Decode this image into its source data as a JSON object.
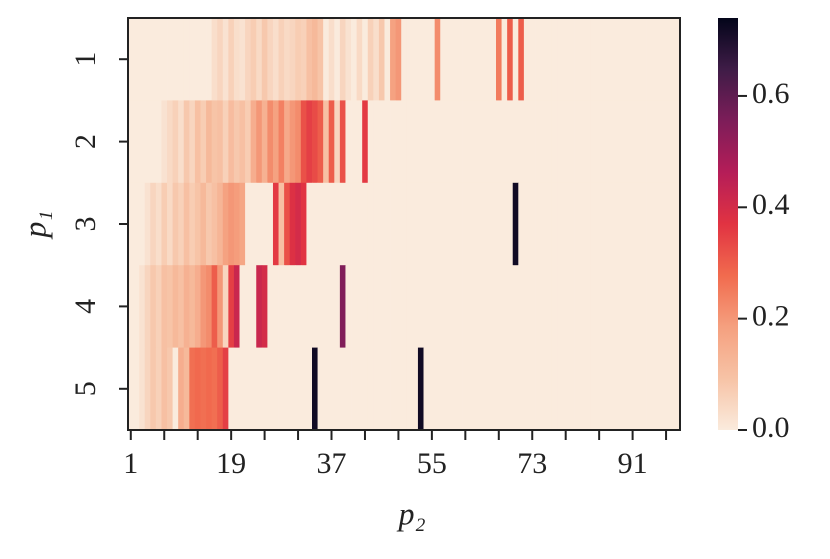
{
  "chart_data": {
    "type": "heatmap",
    "xlabel": "p₂",
    "ylabel": "p₁",
    "x": [
      1,
      2,
      3,
      4,
      5,
      6,
      7,
      8,
      9,
      10,
      11,
      12,
      13,
      14,
      15,
      16,
      17,
      18,
      19,
      20,
      21,
      22,
      23,
      24,
      25,
      26,
      27,
      28,
      29,
      30,
      31,
      32,
      33,
      34,
      35,
      36,
      37,
      38,
      39,
      40,
      41,
      42,
      43,
      44,
      45,
      46,
      47,
      48,
      49,
      50,
      51,
      52,
      53,
      54,
      55,
      56,
      57,
      58,
      59,
      60,
      61,
      62,
      63,
      64,
      65,
      66,
      67,
      68,
      69,
      70,
      71,
      72,
      73,
      74,
      75,
      76,
      77,
      78,
      79,
      80,
      81,
      82,
      83,
      84,
      85,
      86,
      87,
      88,
      89,
      90,
      91,
      92,
      93,
      94,
      95,
      96,
      97,
      98,
      99
    ],
    "xlim": [
      0.5,
      99.5
    ],
    "xticks": [
      1,
      19,
      37,
      55,
      73,
      91
    ],
    "xminorticks": [
      7,
      13,
      25,
      31,
      43,
      49,
      61,
      67,
      79,
      85,
      97
    ],
    "y": [
      "1",
      "2",
      "3",
      "4",
      "5"
    ],
    "z": [
      [
        0,
        0,
        0,
        0,
        0,
        0,
        0,
        0,
        0,
        0,
        0,
        0,
        0,
        0,
        0,
        0.03,
        0.05,
        0.02,
        0.06,
        0.03,
        0.02,
        0.05,
        0.07,
        0.04,
        0.08,
        0.05,
        0.03,
        0.06,
        0.04,
        0.05,
        0.07,
        0.06,
        0.1,
        0.12,
        0.09,
        0,
        0.03,
        0,
        0.05,
        0.02,
        0,
        0.04,
        0,
        0.06,
        0.03,
        0.08,
        0,
        0.18,
        0.2,
        0,
        0,
        0,
        0,
        0,
        0,
        0.22,
        0,
        0,
        0,
        0,
        0,
        0,
        0,
        0,
        0,
        0,
        0.25,
        0,
        0.3,
        0,
        0.3,
        0,
        0,
        0,
        0,
        0,
        0,
        0,
        0,
        0,
        0,
        0,
        0,
        0,
        0,
        0,
        0,
        0,
        0,
        0,
        0,
        0,
        0,
        0,
        0,
        0,
        0,
        0,
        0
      ],
      [
        0,
        0,
        0,
        0,
        0,
        0,
        0.02,
        0.04,
        0.06,
        0.03,
        0.08,
        0.05,
        0.1,
        0.07,
        0.12,
        0.09,
        0.1,
        0.06,
        0.11,
        0.08,
        0.1,
        0.07,
        0.15,
        0.2,
        0.14,
        0.22,
        0.18,
        0.24,
        0.16,
        0.2,
        0.22,
        0.32,
        0.35,
        0.33,
        0.3,
        0.1,
        0.3,
        0.05,
        0.32,
        0,
        0,
        0,
        0.36,
        0,
        0,
        0,
        0,
        0,
        0,
        0,
        0,
        0,
        0,
        0,
        0,
        0,
        0,
        0,
        0,
        0,
        0,
        0,
        0,
        0,
        0,
        0,
        0,
        0,
        0,
        0,
        0,
        0,
        0,
        0,
        0,
        0,
        0,
        0,
        0,
        0,
        0,
        0,
        0,
        0,
        0,
        0,
        0,
        0,
        0,
        0,
        0,
        0,
        0,
        0,
        0,
        0,
        0,
        0,
        0
      ],
      [
        0,
        0,
        0,
        0.02,
        0.05,
        0.03,
        0.07,
        0.04,
        0.08,
        0.06,
        0.1,
        0.07,
        0.09,
        0.12,
        0.08,
        0.1,
        0.13,
        0.18,
        0.2,
        0.19,
        0.17,
        0,
        0,
        0,
        0,
        0,
        0.36,
        0.1,
        0.32,
        0.38,
        0.4,
        0.37,
        0,
        0,
        0,
        0,
        0,
        0,
        0,
        0,
        0,
        0,
        0,
        0,
        0,
        0,
        0,
        0,
        0,
        0,
        0,
        0,
        0,
        0,
        0,
        0,
        0,
        0,
        0,
        0,
        0,
        0,
        0,
        0,
        0,
        0,
        0,
        0,
        0,
        0.72,
        0,
        0,
        0,
        0,
        0,
        0,
        0,
        0,
        0,
        0,
        0,
        0,
        0,
        0,
        0,
        0,
        0,
        0,
        0,
        0,
        0,
        0,
        0,
        0,
        0,
        0,
        0,
        0,
        0
      ],
      [
        0,
        0,
        0.02,
        0.05,
        0.08,
        0.06,
        0.1,
        0.09,
        0.12,
        0.1,
        0.14,
        0.12,
        0.15,
        0.2,
        0.22,
        0.3,
        0.2,
        0.05,
        0.35,
        0.42,
        0,
        0,
        0,
        0.42,
        0.4,
        0,
        0,
        0,
        0,
        0,
        0,
        0,
        0,
        0,
        0,
        0,
        0,
        0,
        0.55,
        0,
        0,
        0,
        0,
        0,
        0,
        0,
        0,
        0,
        0,
        0,
        0,
        0,
        0,
        0,
        0,
        0,
        0,
        0,
        0,
        0,
        0,
        0,
        0,
        0,
        0,
        0,
        0,
        0,
        0,
        0,
        0,
        0,
        0,
        0,
        0,
        0,
        0,
        0,
        0,
        0,
        0,
        0,
        0,
        0,
        0,
        0,
        0,
        0,
        0,
        0,
        0,
        0,
        0,
        0,
        0,
        0,
        0,
        0,
        0
      ],
      [
        0,
        0,
        0.02,
        0.05,
        0.08,
        0.06,
        0.1,
        0.08,
        0,
        0.15,
        0.12,
        0.27,
        0.28,
        0.27,
        0.28,
        0.27,
        0.3,
        0.35,
        0,
        0,
        0,
        0,
        0,
        0,
        0,
        0,
        0,
        0,
        0,
        0,
        0,
        0,
        0,
        0.72,
        0,
        0,
        0,
        0,
        0,
        0,
        0,
        0,
        0,
        0,
        0,
        0,
        0,
        0,
        0,
        0,
        0,
        0,
        0.72,
        0,
        0,
        0,
        0,
        0,
        0,
        0,
        0,
        0,
        0,
        0,
        0,
        0,
        0,
        0,
        0,
        0,
        0,
        0,
        0,
        0,
        0,
        0,
        0,
        0,
        0,
        0,
        0,
        0,
        0,
        0,
        0,
        0,
        0,
        0,
        0,
        0,
        0,
        0,
        0,
        0,
        0,
        0,
        0,
        0,
        0
      ]
    ],
    "zlim": [
      0,
      0.74
    ],
    "zticks": [
      {
        "value": 0,
        "label": "0.0"
      },
      {
        "value": 0.2,
        "label": "0.2"
      },
      {
        "value": 0.4,
        "label": "0.4"
      },
      {
        "value": 0.6,
        "label": "0.6"
      }
    ],
    "colormap": [
      "#faebdd",
      "#f7c3a6",
      "#f5a07f",
      "#f16b4e",
      "#e13342",
      "#b51d58",
      "#7d1d59",
      "#3f1c47",
      "#03051a"
    ]
  }
}
